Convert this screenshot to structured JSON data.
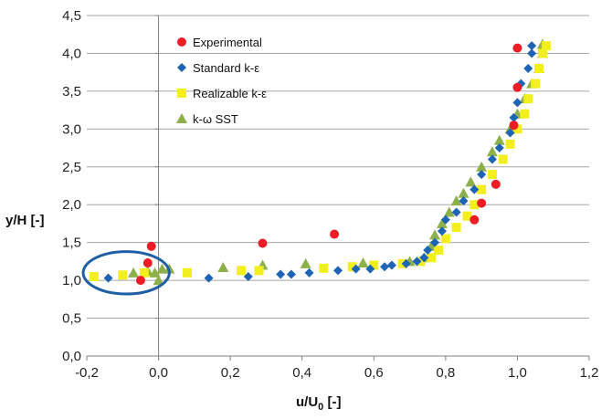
{
  "chart_data": {
    "type": "scatter",
    "title": "",
    "xlabel_main": "u/U",
    "xlabel_sub": "0",
    "xlabel_suffix": " [-]",
    "ylabel": "y/H [-]",
    "xlim": [
      -0.2,
      1.2
    ],
    "ylim": [
      0.0,
      4.5
    ],
    "xticks": [
      "-0,2",
      "0,0",
      "0,2",
      "0,4",
      "0,6",
      "0,8",
      "1,0",
      "1,2"
    ],
    "yticks": [
      "0,0",
      "0,5",
      "1,0",
      "1,5",
      "2,0",
      "2,5",
      "3,0",
      "3,5",
      "4,0",
      "4,5"
    ],
    "xtick_values": [
      -0.2,
      0.0,
      0.2,
      0.4,
      0.6,
      0.8,
      1.0,
      1.2
    ],
    "ytick_values": [
      0.0,
      0.5,
      1.0,
      1.5,
      2.0,
      2.5,
      3.0,
      3.5,
      4.0,
      4.5
    ],
    "grid": "horizontal",
    "legend_position": "top-left",
    "annotation": {
      "shape": "ellipse",
      "center": [
        -0.09,
        1.1
      ],
      "radius": [
        0.12,
        0.28
      ],
      "color": "#1f5fa6"
    },
    "series": [
      {
        "name": "Experimental",
        "marker": "circle",
        "color": "#ee1c25",
        "points": [
          [
            -0.05,
            1.0
          ],
          [
            -0.03,
            1.23
          ],
          [
            -0.02,
            1.45
          ],
          [
            0.29,
            1.49
          ],
          [
            0.49,
            1.61
          ],
          [
            0.88,
            1.8
          ],
          [
            0.9,
            2.02
          ],
          [
            0.94,
            2.27
          ],
          [
            0.99,
            3.05
          ],
          [
            1.0,
            3.55
          ],
          [
            1.0,
            4.07
          ]
        ]
      },
      {
        "name": "Standard k-ε",
        "marker": "diamond",
        "color": "#1e64b4",
        "points": [
          [
            -0.14,
            1.03
          ],
          [
            0.14,
            1.03
          ],
          [
            0.25,
            1.05
          ],
          [
            0.34,
            1.08
          ],
          [
            0.37,
            1.08
          ],
          [
            0.42,
            1.1
          ],
          [
            0.5,
            1.13
          ],
          [
            0.55,
            1.15
          ],
          [
            0.59,
            1.15
          ],
          [
            0.63,
            1.18
          ],
          [
            0.65,
            1.2
          ],
          [
            0.69,
            1.22
          ],
          [
            0.72,
            1.25
          ],
          [
            0.74,
            1.3
          ],
          [
            0.75,
            1.4
          ],
          [
            0.77,
            1.5
          ],
          [
            0.79,
            1.65
          ],
          [
            0.8,
            1.8
          ],
          [
            0.83,
            1.9
          ],
          [
            0.85,
            2.05
          ],
          [
            0.88,
            2.2
          ],
          [
            0.9,
            2.4
          ],
          [
            0.93,
            2.6
          ],
          [
            0.95,
            2.75
          ],
          [
            0.98,
            2.95
          ],
          [
            0.99,
            3.15
          ],
          [
            1.0,
            3.35
          ],
          [
            1.01,
            3.6
          ],
          [
            1.03,
            3.8
          ],
          [
            1.04,
            4.0
          ],
          [
            1.04,
            4.1
          ]
        ]
      },
      {
        "name": "Realizable k-ε",
        "marker": "square",
        "color": "#f3ef1f",
        "points": [
          [
            -0.18,
            1.05
          ],
          [
            -0.1,
            1.07
          ],
          [
            -0.04,
            1.1
          ],
          [
            0.08,
            1.1
          ],
          [
            0.23,
            1.13
          ],
          [
            0.28,
            1.13
          ],
          [
            0.46,
            1.16
          ],
          [
            0.54,
            1.18
          ],
          [
            0.6,
            1.2
          ],
          [
            0.68,
            1.22
          ],
          [
            0.73,
            1.25
          ],
          [
            0.76,
            1.3
          ],
          [
            0.78,
            1.4
          ],
          [
            0.8,
            1.55
          ],
          [
            0.83,
            1.7
          ],
          [
            0.86,
            1.85
          ],
          [
            0.88,
            2.0
          ],
          [
            0.9,
            2.2
          ],
          [
            0.93,
            2.4
          ],
          [
            0.96,
            2.6
          ],
          [
            0.98,
            2.8
          ],
          [
            1.0,
            3.0
          ],
          [
            1.02,
            3.2
          ],
          [
            1.03,
            3.4
          ],
          [
            1.05,
            3.6
          ],
          [
            1.06,
            3.8
          ],
          [
            1.07,
            4.0
          ],
          [
            1.08,
            4.1
          ]
        ]
      },
      {
        "name": "k-ω SST",
        "marker": "triangle",
        "color": "#8db04b",
        "points": [
          [
            -0.07,
            1.1
          ],
          [
            -0.03,
            1.12
          ],
          [
            -0.01,
            1.1
          ],
          [
            0.0,
            1.0
          ],
          [
            0.01,
            1.15
          ],
          [
            0.03,
            1.15
          ],
          [
            0.18,
            1.17
          ],
          [
            0.29,
            1.2
          ],
          [
            0.41,
            1.22
          ],
          [
            0.57,
            1.23
          ],
          [
            0.7,
            1.25
          ],
          [
            0.74,
            1.3
          ],
          [
            0.76,
            1.45
          ],
          [
            0.77,
            1.6
          ],
          [
            0.79,
            1.75
          ],
          [
            0.81,
            1.9
          ],
          [
            0.83,
            2.05
          ],
          [
            0.85,
            2.15
          ],
          [
            0.87,
            2.3
          ],
          [
            0.9,
            2.5
          ],
          [
            0.93,
            2.7
          ],
          [
            0.95,
            2.85
          ],
          [
            0.98,
            3.0
          ],
          [
            1.0,
            3.2
          ],
          [
            1.02,
            3.4
          ],
          [
            1.04,
            3.6
          ],
          [
            1.06,
            3.8
          ],
          [
            1.07,
            4.0
          ],
          [
            1.07,
            4.12
          ]
        ]
      }
    ]
  }
}
